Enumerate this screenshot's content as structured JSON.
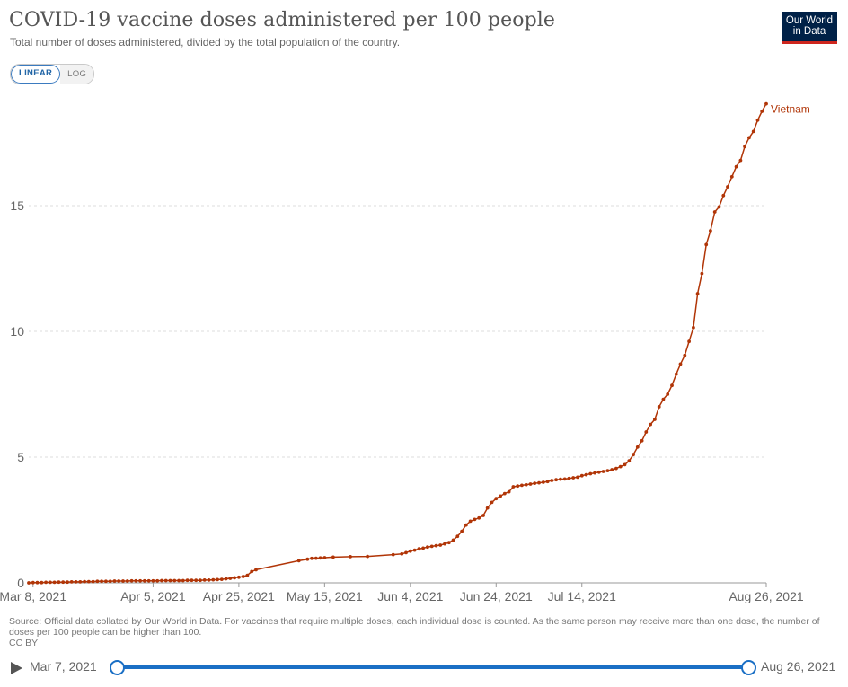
{
  "header": {
    "title": "COVID-19 vaccine doses administered per 100 people",
    "subtitle": "Total number of doses administered, divided by the total population of the country.",
    "logo_line1": "Our World",
    "logo_line2": "in Data"
  },
  "scale_toggle": {
    "linear_label": "LINEAR",
    "log_label": "LOG",
    "selected": "LINEAR"
  },
  "footer": {
    "source": "Source: Official data collated by Our World in Data. For vaccines that require multiple doses, each individual dose is counted. As the same person may receive more than one dose, the number of doses per 100 people can be higher than 100.",
    "license": "CC BY"
  },
  "timeline": {
    "start_label": "Mar 7, 2021",
    "end_label": "Aug 26, 2021"
  },
  "colors": {
    "series": "#b13507",
    "grid": "#dddddd",
    "accent": "#1a6fc5",
    "logo_bg": "#002147",
    "logo_bar": "#ce261e"
  },
  "chart_data": {
    "type": "line",
    "title": "COVID-19 vaccine doses administered per 100 people",
    "xlabel": "",
    "ylabel": "",
    "ylim": [
      0,
      19.5
    ],
    "yticks": [
      0,
      5,
      10,
      15
    ],
    "x_start": "2021-03-07",
    "x_end": "2021-08-26",
    "xticks": [
      {
        "day": 1,
        "label": "Mar 8, 2021"
      },
      {
        "day": 29,
        "label": "Apr 5, 2021"
      },
      {
        "day": 49,
        "label": "Apr 25, 2021"
      },
      {
        "day": 69,
        "label": "May 15, 2021"
      },
      {
        "day": 89,
        "label": "Jun 4, 2021"
      },
      {
        "day": 109,
        "label": "Jun 24, 2021"
      },
      {
        "day": 129,
        "label": "Jul 14, 2021"
      },
      {
        "day": 172,
        "label": "Aug 26, 2021"
      }
    ],
    "series": [
      {
        "name": "Vietnam",
        "x": [
          0,
          1,
          2,
          3,
          4,
          5,
          6,
          7,
          8,
          9,
          10,
          11,
          12,
          13,
          14,
          15,
          16,
          17,
          18,
          19,
          20,
          21,
          22,
          23,
          24,
          25,
          26,
          27,
          28,
          29,
          30,
          31,
          32,
          33,
          34,
          35,
          36,
          37,
          38,
          39,
          40,
          41,
          42,
          43,
          44,
          45,
          46,
          47,
          48,
          49,
          50,
          51,
          52,
          53,
          63,
          65,
          66,
          67,
          68,
          69,
          71,
          75,
          79,
          85,
          87,
          88,
          89,
          90,
          91,
          92,
          93,
          94,
          95,
          96,
          97,
          98,
          99,
          100,
          101,
          102,
          103,
          104,
          105,
          106,
          107,
          108,
          109,
          110,
          111,
          112,
          113,
          114,
          115,
          116,
          117,
          118,
          119,
          120,
          121,
          122,
          123,
          124,
          125,
          126,
          127,
          128,
          129,
          130,
          131,
          132,
          133,
          134,
          135,
          136,
          137,
          138,
          139,
          140,
          141,
          142,
          143,
          144,
          145,
          146,
          147,
          148,
          149,
          150,
          151,
          152,
          153,
          154,
          155,
          156,
          157,
          158,
          159,
          160,
          161,
          162,
          163,
          164,
          165,
          166,
          167,
          168,
          169,
          170,
          171,
          172
        ],
        "values": [
          0,
          0.01,
          0.01,
          0.01,
          0.02,
          0.02,
          0.02,
          0.03,
          0.03,
          0.03,
          0.04,
          0.04,
          0.04,
          0.05,
          0.05,
          0.05,
          0.06,
          0.06,
          0.06,
          0.06,
          0.07,
          0.07,
          0.07,
          0.07,
          0.08,
          0.08,
          0.08,
          0.08,
          0.08,
          0.08,
          0.08,
          0.09,
          0.09,
          0.09,
          0.09,
          0.09,
          0.09,
          0.1,
          0.1,
          0.1,
          0.1,
          0.11,
          0.11,
          0.12,
          0.13,
          0.14,
          0.16,
          0.18,
          0.2,
          0.22,
          0.25,
          0.3,
          0.45,
          0.52,
          0.88,
          0.94,
          0.97,
          0.98,
          0.99,
          1.0,
          1.02,
          1.04,
          1.05,
          1.12,
          1.15,
          1.2,
          1.26,
          1.3,
          1.35,
          1.38,
          1.42,
          1.45,
          1.48,
          1.5,
          1.55,
          1.6,
          1.7,
          1.85,
          2.05,
          2.3,
          2.45,
          2.52,
          2.58,
          2.68,
          2.98,
          3.2,
          3.35,
          3.45,
          3.55,
          3.62,
          3.82,
          3.85,
          3.88,
          3.9,
          3.93,
          3.96,
          3.98,
          4.0,
          4.03,
          4.07,
          4.1,
          4.12,
          4.13,
          4.15,
          4.18,
          4.2,
          4.26,
          4.3,
          4.34,
          4.37,
          4.4,
          4.43,
          4.46,
          4.5,
          4.55,
          4.62,
          4.7,
          4.85,
          5.1,
          5.4,
          5.65,
          6.0,
          6.3,
          6.5,
          7.0,
          7.3,
          7.5,
          7.85,
          8.3,
          8.7,
          9.05,
          9.6,
          10.15,
          11.5,
          12.3,
          13.45,
          14.0,
          14.75,
          14.95,
          15.4,
          15.75,
          16.15,
          16.55,
          16.8,
          17.35,
          17.7,
          17.95,
          18.4,
          18.75,
          19.05
        ]
      }
    ]
  }
}
